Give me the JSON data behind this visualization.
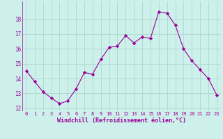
{
  "x": [
    0,
    1,
    2,
    3,
    4,
    5,
    6,
    7,
    8,
    9,
    10,
    11,
    12,
    13,
    14,
    15,
    16,
    17,
    18,
    19,
    20,
    21,
    22,
    23
  ],
  "y": [
    14.5,
    13.8,
    13.1,
    12.7,
    12.3,
    12.5,
    13.3,
    14.4,
    14.3,
    15.3,
    16.1,
    16.2,
    16.9,
    16.4,
    16.8,
    16.7,
    18.5,
    18.4,
    17.6,
    16.0,
    15.2,
    14.6,
    14.0,
    12.9
  ],
  "line_color": "#990099",
  "marker": "D",
  "marker_size": 2.2,
  "bg_color": "#cef0eb",
  "grid_color": "#aad8d0",
  "xlabel": "Windchill (Refroidissement éolien,°C)",
  "xlabel_color": "#990099",
  "tick_color": "#990099",
  "ylim": [
    11.8,
    19.2
  ],
  "yticks": [
    12,
    13,
    14,
    15,
    16,
    17,
    18
  ],
  "xlim": [
    -0.5,
    23.5
  ],
  "xticks": [
    0,
    1,
    2,
    3,
    4,
    5,
    6,
    7,
    8,
    9,
    10,
    11,
    12,
    13,
    14,
    15,
    16,
    17,
    18,
    19,
    20,
    21,
    22,
    23
  ]
}
